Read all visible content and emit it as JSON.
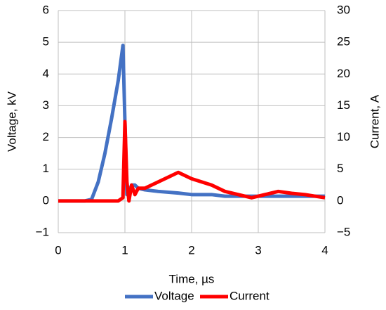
{
  "chart_data": {
    "type": "line",
    "x_label": "Time, µs",
    "y_label": "Voltage, kV",
    "y2_label": "Current, A",
    "x": [
      0,
      0.2,
      0.4,
      0.5,
      0.6,
      0.7,
      0.8,
      0.9,
      0.97,
      1.0,
      1.03,
      1.06,
      1.1,
      1.15,
      1.2,
      1.3,
      1.5,
      1.8,
      2.0,
      2.3,
      2.5,
      2.7,
      2.9,
      3.1,
      3.3,
      3.5,
      3.7,
      4.0
    ],
    "series": [
      {
        "name": "Voltage",
        "color": "#4472c4",
        "values": [
          0,
          0,
          0,
          0.05,
          0.6,
          1.5,
          2.6,
          3.8,
          4.9,
          2.5,
          0.2,
          0.3,
          0.5,
          0.5,
          0.4,
          0.35,
          0.3,
          0.25,
          0.2,
          0.2,
          0.15,
          0.15,
          0.15,
          0.15,
          0.15,
          0.15,
          0.15,
          0.15
        ]
      },
      {
        "name": "Current",
        "color": "#ff0000",
        "axis": "y2",
        "values": [
          0,
          0,
          0,
          0,
          0,
          0,
          0,
          0,
          0.5,
          12.5,
          3,
          0,
          2.5,
          1,
          2,
          2,
          3,
          4.5,
          3.5,
          2.5,
          1.5,
          1,
          0.5,
          1,
          1.5,
          1.2,
          1,
          0.5
        ]
      }
    ],
    "xlim": [
      0,
      4
    ],
    "xticks": [
      0,
      1,
      2,
      3,
      4
    ],
    "ylim": [
      -1,
      6
    ],
    "yticks": [
      {
        "value": -1,
        "label": "−1"
      },
      0,
      1,
      2,
      3,
      4,
      5,
      6
    ],
    "y2lim": [
      -5,
      30
    ],
    "y2ticks": [
      {
        "value": -5,
        "label": "−5"
      },
      0,
      5,
      10,
      15,
      20,
      25,
      30
    ],
    "grid": true,
    "legend": "bottom"
  }
}
